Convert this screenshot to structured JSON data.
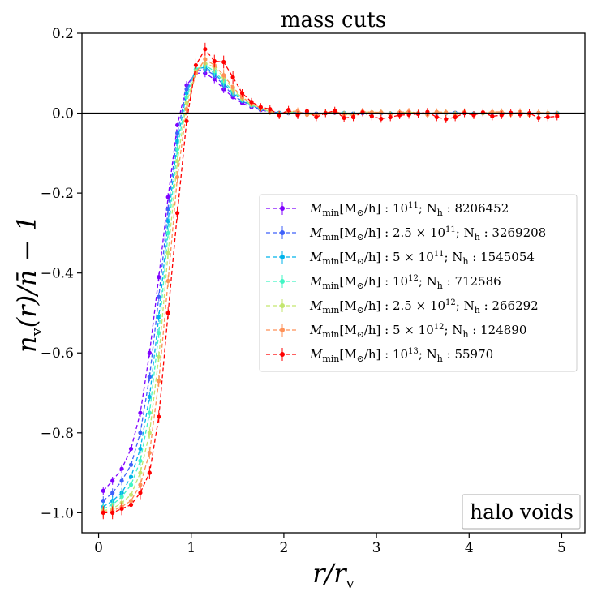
{
  "chart_data": {
    "type": "line",
    "title": "mass cuts",
    "xlabel": "r/r_v",
    "ylabel": "n_v(r)/n̄ − 1",
    "xlim": [
      -0.18,
      5.25
    ],
    "ylim": [
      -1.05,
      0.2
    ],
    "x_ticks": [
      0,
      1,
      2,
      3,
      4,
      5
    ],
    "x_tick_labels": [
      "0",
      "1",
      "2",
      "3",
      "4",
      "5"
    ],
    "y_ticks": [
      0.2,
      0.0,
      -0.2,
      -0.4,
      -0.6,
      -0.8,
      -1.0
    ],
    "y_tick_labels": [
      "0.2",
      "0.0",
      "−0.2",
      "−0.4",
      "−0.6",
      "−0.8",
      "−1.0"
    ],
    "hline": 0.0,
    "legend_position": "center-right",
    "annotation": "halo voids",
    "x": [
      0.05,
      0.15,
      0.25,
      0.35,
      0.45,
      0.55,
      0.65,
      0.75,
      0.85,
      0.95,
      1.05,
      1.15,
      1.25,
      1.35,
      1.45,
      1.55,
      1.65,
      1.75,
      1.85,
      1.95,
      2.05,
      2.15,
      2.25,
      2.35,
      2.45,
      2.55,
      2.65,
      2.75,
      2.85,
      2.95,
      3.05,
      3.15,
      3.25,
      3.35,
      3.45,
      3.55,
      3.65,
      3.75,
      3.85,
      3.95,
      4.05,
      4.15,
      4.25,
      4.35,
      4.45,
      4.55,
      4.65,
      4.75,
      4.85,
      4.95
    ],
    "series": [
      {
        "name": "M_min[M☉/h] : 10^11; N_h : 8206452",
        "label_pre": "M",
        "label_sub": "min",
        "label_mid": "[M",
        "label_sun": "⊙",
        "label_mid2": "/h] : ",
        "label_mass": "10",
        "label_exp": "11",
        "label_post": "; N",
        "label_nsub": "h",
        "label_count": " :  8206452",
        "color": "#7f00ff",
        "values": [
          -0.945,
          -0.92,
          -0.89,
          -0.84,
          -0.75,
          -0.6,
          -0.41,
          -0.21,
          -0.03,
          0.07,
          0.1,
          0.1,
          0.085,
          0.06,
          0.04,
          0.025,
          0.015,
          0.008,
          0.003,
          0.0,
          0.0,
          0.001,
          0.0,
          -0.001,
          0.0,
          0.001,
          0.0,
          -0.001,
          0.0,
          0.001,
          0.0,
          -0.001,
          0.0,
          0.001,
          0.0,
          -0.001,
          0.0,
          0.0,
          0.001,
          0.0,
          -0.001,
          0.0,
          0.0,
          0.001,
          0.0,
          0.0,
          -0.001,
          0.0,
          0.0,
          0.0
        ]
      },
      {
        "name": "M_min[M☉/h] : 2.5×10^11; N_h : 3269208",
        "label_pre": "M",
        "label_sub": "min",
        "label_mid": "[M",
        "label_sun": "⊙",
        "label_mid2": "/h] : ",
        "label_mass": "2.5 × 10",
        "label_exp": "11",
        "label_post": "; N",
        "label_nsub": "h",
        "label_count": " :  3269208",
        "color": "#3f61fa",
        "values": [
          -0.97,
          -0.95,
          -0.92,
          -0.88,
          -0.8,
          -0.66,
          -0.46,
          -0.24,
          -0.05,
          0.06,
          0.105,
          0.11,
          0.095,
          0.07,
          0.045,
          0.03,
          0.018,
          0.01,
          0.004,
          0.001,
          0.0,
          0.002,
          0.0,
          -0.002,
          0.0,
          0.001,
          0.0,
          -0.001,
          0.001,
          0.0,
          0.0,
          -0.001,
          0.0,
          0.001,
          0.0,
          -0.001,
          0.0,
          0.001,
          0.0,
          0.0,
          -0.001,
          0.0,
          0.001,
          0.0,
          0.0,
          0.0,
          -0.001,
          0.0,
          0.0,
          0.0
        ]
      },
      {
        "name": "M_min[M☉/h] : 5×10^11; N_h : 1545054",
        "label_pre": "M",
        "label_sub": "min",
        "label_mid": "[M",
        "label_sun": "⊙",
        "label_mid2": "/h] : ",
        "label_mass": "5 × 10",
        "label_exp": "11",
        "label_post": "; N",
        "label_nsub": "h",
        "label_count": " :  1545054",
        "color": "#01b3eb",
        "values": [
          -0.985,
          -0.97,
          -0.95,
          -0.91,
          -0.84,
          -0.71,
          -0.51,
          -0.27,
          -0.07,
          0.05,
          0.11,
          0.115,
          0.1,
          0.075,
          0.05,
          0.032,
          0.02,
          0.01,
          0.004,
          0.0,
          0.001,
          0.002,
          -0.001,
          -0.002,
          0.0,
          0.002,
          0.0,
          -0.002,
          0.001,
          0.0,
          0.001,
          -0.001,
          0.0,
          0.001,
          0.0,
          -0.001,
          0.001,
          0.0,
          0.0,
          0.001,
          -0.001,
          0.0,
          0.001,
          0.0,
          0.0,
          0.001,
          -0.001,
          0.0,
          0.0,
          0.0
        ]
      },
      {
        "name": "M_min[M☉/h] : 10^12; N_h : 712586",
        "label_pre": "M",
        "label_sub": "min",
        "label_mid": "[M",
        "label_sun": "⊙",
        "label_mid2": "/h] : ",
        "label_mass": "10",
        "label_exp": "12",
        "label_post": "; N",
        "label_nsub": "h",
        "label_count": " :  712586",
        "color": "#41f5c4",
        "values": [
          -0.99,
          -0.98,
          -0.96,
          -0.93,
          -0.87,
          -0.75,
          -0.55,
          -0.3,
          -0.09,
          0.04,
          0.11,
          0.12,
          0.105,
          0.08,
          0.055,
          0.034,
          0.02,
          0.011,
          0.004,
          -0.001,
          0.002,
          0.003,
          -0.002,
          -0.003,
          0.0,
          0.003,
          -0.001,
          -0.003,
          0.002,
          0.001,
          0.001,
          -0.002,
          0.001,
          0.002,
          0.0,
          -0.002,
          0.001,
          0.001,
          -0.001,
          0.001,
          -0.002,
          0.0,
          0.001,
          0.001,
          -0.001,
          0.001,
          -0.002,
          0.0,
          0.0,
          -0.001
        ]
      },
      {
        "name": "M_min[M☉/h] : 2.5×10^12; N_h : 266292",
        "label_pre": "M",
        "label_sub": "min",
        "label_mid": "[M",
        "label_sun": "⊙",
        "label_mid2": "/h] : ",
        "label_mass": "2.5 × 10",
        "label_exp": "12",
        "label_post": "; N",
        "label_nsub": "h",
        "label_count": " :  266292",
        "color": "#c3e66e",
        "values": [
          -0.995,
          -0.99,
          -0.975,
          -0.955,
          -0.9,
          -0.8,
          -0.61,
          -0.35,
          -0.12,
          0.025,
          0.105,
          0.125,
          0.115,
          0.09,
          0.06,
          0.037,
          0.022,
          0.012,
          0.004,
          -0.002,
          0.003,
          0.004,
          -0.003,
          -0.004,
          0.001,
          0.004,
          -0.002,
          -0.004,
          0.003,
          0.002,
          0.002,
          -0.003,
          0.001,
          0.003,
          0.0,
          -0.003,
          0.002,
          0.001,
          -0.002,
          0.002,
          -0.003,
          0.0,
          0.002,
          0.002,
          -0.002,
          0.002,
          -0.003,
          0.001,
          0.0,
          -0.002
        ]
      },
      {
        "name": "M_min[M☉/h] : 5×10^12; N_h : 124890",
        "label_pre": "M",
        "label_sub": "min",
        "label_mid": "[M",
        "label_sun": "⊙",
        "label_mid2": "/h] : ",
        "label_mass": "5 × 10",
        "label_exp": "12",
        "label_post": "; N",
        "label_nsub": "h",
        "label_count": " :  124890",
        "color": "#ff9157",
        "values": [
          -0.998,
          -0.995,
          -0.985,
          -0.97,
          -0.93,
          -0.85,
          -0.67,
          -0.42,
          -0.16,
          0.01,
          0.1,
          0.135,
          0.12,
          0.095,
          0.065,
          0.04,
          0.024,
          0.013,
          0.004,
          -0.003,
          0.004,
          0.005,
          -0.004,
          -0.005,
          0.001,
          0.005,
          -0.003,
          -0.006,
          0.004,
          0.002,
          0.002,
          -0.004,
          0.002,
          0.004,
          0.0,
          -0.004,
          0.003,
          0.002,
          -0.003,
          0.003,
          -0.004,
          0.001,
          0.003,
          0.003,
          -0.003,
          0.003,
          -0.004,
          0.001,
          0.0,
          -0.003
        ]
      },
      {
        "name": "M_min[M☉/h] : 10^13; N_h : 55970",
        "label_pre": "M",
        "label_sub": "min",
        "label_mid": "[M",
        "label_sun": "⊙",
        "label_mid2": "/h] : ",
        "label_mass": "10",
        "label_exp": "13",
        "label_post": "; N",
        "label_nsub": "h",
        "label_count": " :  55970",
        "color": "#ff0000",
        "values": [
          -1.0,
          -1.0,
          -0.99,
          -0.98,
          -0.95,
          -0.9,
          -0.76,
          -0.5,
          -0.25,
          -0.02,
          0.12,
          0.16,
          0.13,
          0.128,
          0.09,
          0.05,
          0.028,
          0.015,
          0.01,
          -0.005,
          0.008,
          -0.005,
          0.005,
          -0.01,
          0.0,
          0.006,
          -0.012,
          -0.01,
          0.002,
          -0.008,
          -0.014,
          -0.01,
          -0.005,
          -0.004,
          -0.002,
          0.003,
          -0.01,
          -0.015,
          -0.01,
          0.0,
          -0.005,
          0.002,
          -0.008,
          -0.005,
          0.001,
          -0.003,
          0.0,
          -0.012,
          -0.01,
          -0.008
        ]
      }
    ]
  }
}
